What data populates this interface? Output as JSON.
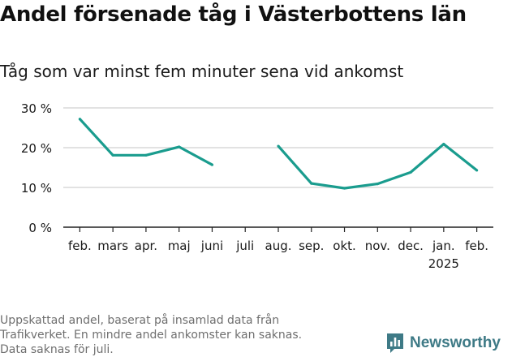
{
  "title": "Andel försenade tåg i Västerbottens län",
  "subtitle": "Tåg som var minst fem minuter sena vid ankomst",
  "footnote": [
    "Uppskattad andel, baserat på insamlad data från",
    "Trafikverket. En mindre andel ankomster kan saknas.",
    "Data saknas för juli."
  ],
  "brand": {
    "name": "Newsworthy",
    "icon": "bar-chart-logo-icon",
    "color": "#3e7a86"
  },
  "chart_data": {
    "type": "line",
    "title": "Andel försenade tåg i Västerbottens län",
    "subtitle": "Tåg som var minst fem minuter sena vid ankomst",
    "categories": [
      "feb.",
      "mars",
      "apr.",
      "maj",
      "juni",
      "juli",
      "aug.",
      "sep.",
      "okt.",
      "nov.",
      "dec.",
      "jan.",
      "feb."
    ],
    "category_sublabels": [
      "",
      "",
      "",
      "",
      "",
      "",
      "",
      "",
      "",
      "",
      "",
      "2025",
      ""
    ],
    "series": [
      {
        "values": [
          27.2,
          18.1,
          18.1,
          20.2,
          15.7,
          null,
          20.4,
          11.0,
          9.8,
          10.9,
          13.8,
          20.9,
          14.3
        ]
      }
    ],
    "ylim": [
      0,
      30
    ],
    "yticks": [
      0,
      10,
      20,
      30
    ],
    "ytick_labels": [
      "0 %",
      "10 %",
      "20 %",
      "30 %"
    ],
    "xlabel": "",
    "ylabel": "",
    "grid": true,
    "legend": "none",
    "line_color": "#1a9c8e",
    "grid_color": "#d9d9d9",
    "axis_color": "#222222"
  }
}
